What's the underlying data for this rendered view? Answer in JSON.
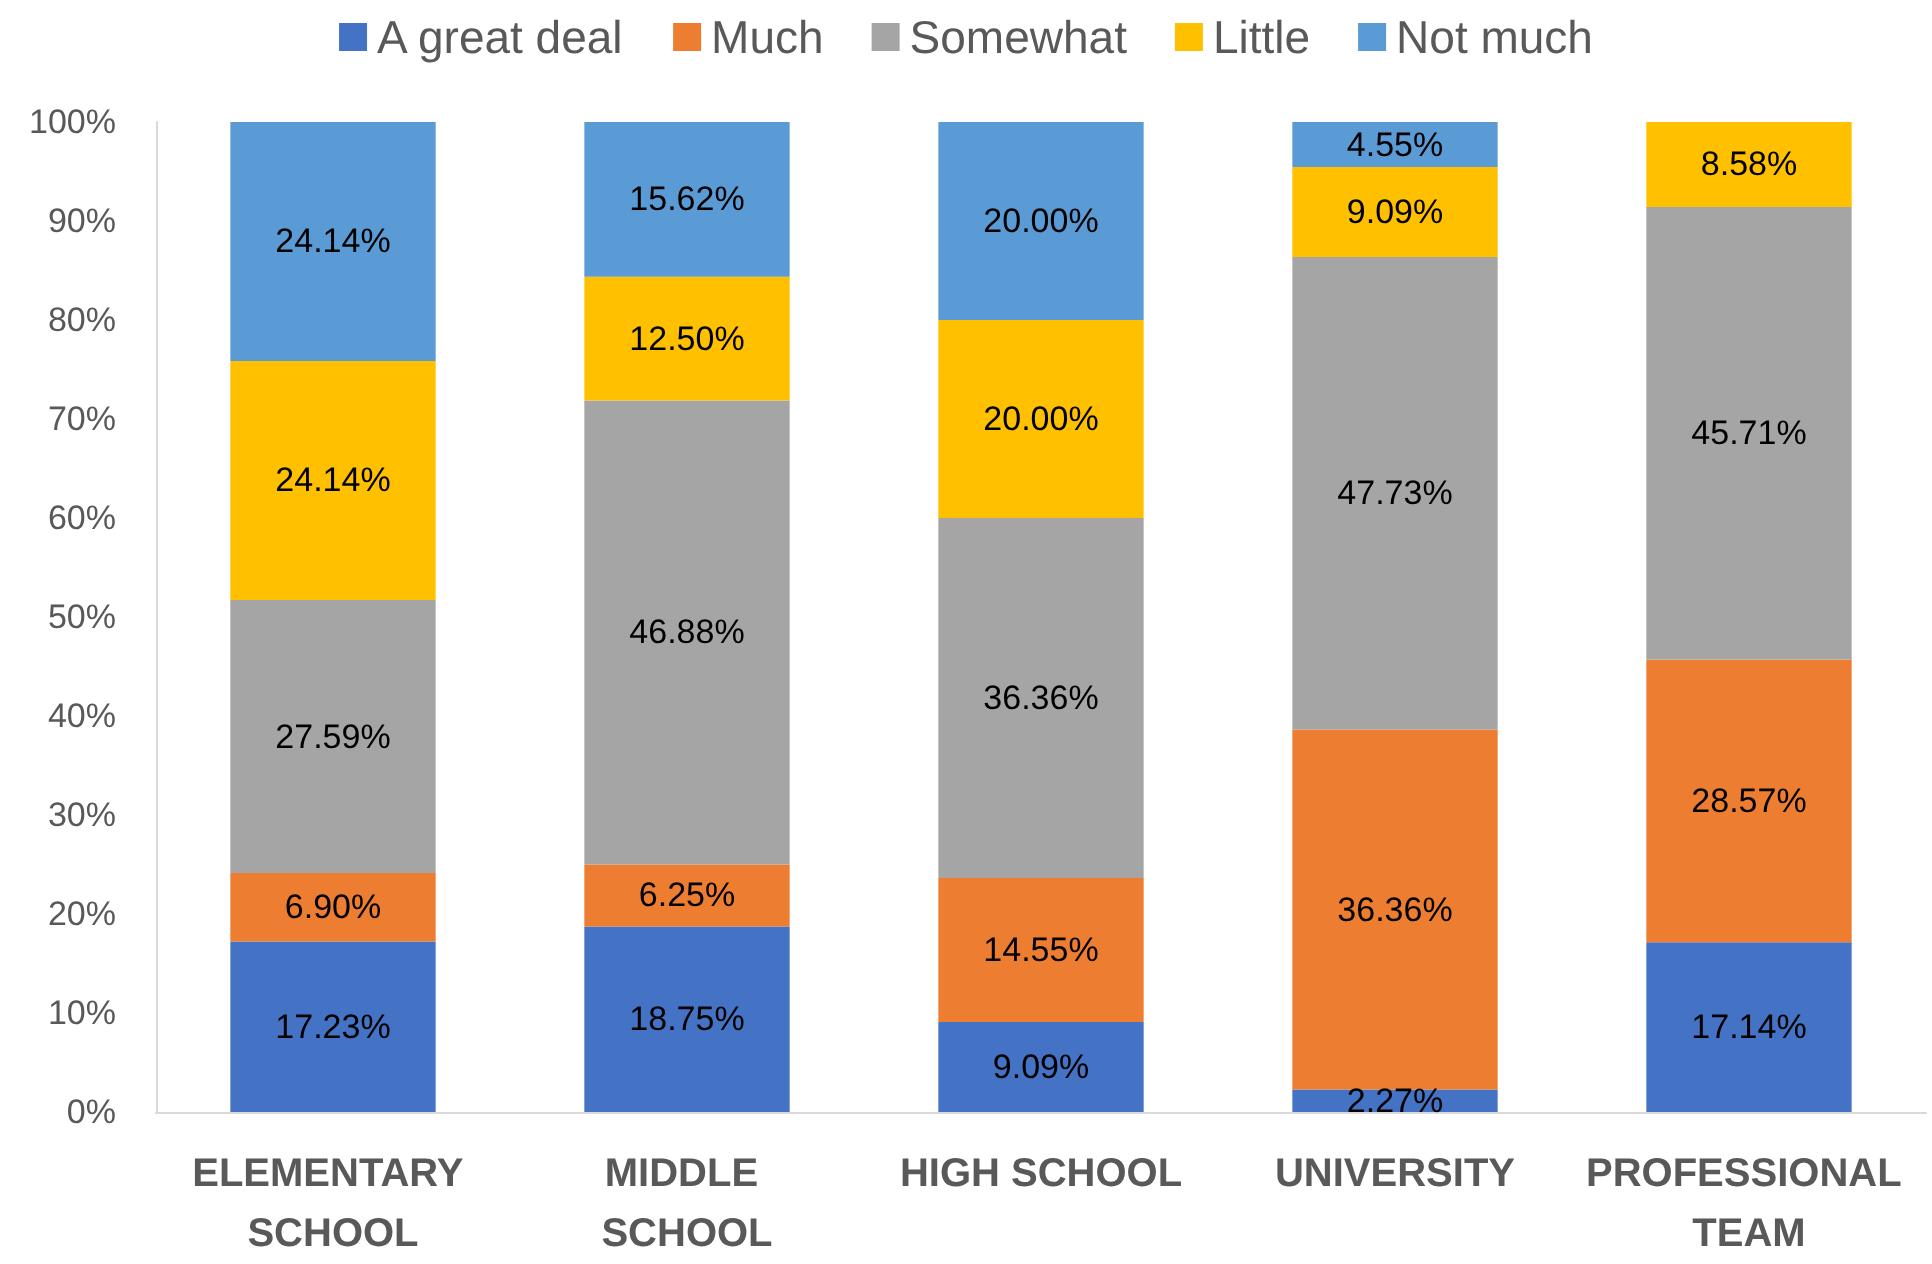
{
  "chart_data": {
    "type": "bar",
    "stacked": true,
    "legend": "top",
    "grid": false,
    "categories": [
      "ELEMENTARY SCHOOL",
      "MIDDLE SCHOOL",
      "HIGH SCHOOL",
      "UNIVERSITY",
      "PROFESSIONAL TEAM"
    ],
    "ylim": [
      0,
      100
    ],
    "yticks": [
      {
        "value": 0,
        "label": "0%"
      },
      {
        "value": 10,
        "label": "10%"
      },
      {
        "value": 20,
        "label": "20%"
      },
      {
        "value": 30,
        "label": "30%"
      },
      {
        "value": 40,
        "label": "40%"
      },
      {
        "value": 50,
        "label": "50%"
      },
      {
        "value": 60,
        "label": "60%"
      },
      {
        "value": 70,
        "label": "70%"
      },
      {
        "value": 80,
        "label": "80%"
      },
      {
        "value": 90,
        "label": "90%"
      },
      {
        "value": 100,
        "label": "100%"
      }
    ],
    "series": [
      {
        "name": "A great deal",
        "color": "#4472c4",
        "values": [
          17.23,
          18.75,
          9.09,
          2.27,
          17.14
        ],
        "value_labels": [
          "17.23%",
          "18.75%",
          "9.09%",
          "2.27%",
          "17.14%"
        ]
      },
      {
        "name": "Much",
        "color": "#ed7d31",
        "values": [
          6.9,
          6.25,
          14.55,
          36.36,
          28.57
        ],
        "value_labels": [
          "6.90%",
          "6.25%",
          "14.55%",
          "36.36%",
          "28.57%"
        ]
      },
      {
        "name": "Somewhat",
        "color": "#a5a5a5",
        "values": [
          27.59,
          46.88,
          36.36,
          47.73,
          45.71
        ],
        "value_labels": [
          "27.59%",
          "46.88%",
          "36.36%",
          "47.73%",
          "45.71%"
        ]
      },
      {
        "name": "Little",
        "color": "#ffc000",
        "values": [
          24.14,
          12.5,
          20.0,
          9.09,
          8.58
        ],
        "value_labels": [
          "24.14%",
          "12.50%",
          "20.00%",
          "9.09%",
          "8.58%"
        ]
      },
      {
        "name": "Not much",
        "color": "#5b9bd5",
        "values": [
          24.14,
          15.62,
          20.0,
          4.55,
          null
        ],
        "value_labels": [
          "24.14%",
          "15.62%",
          "20.00%",
          "4.55%",
          null
        ]
      }
    ]
  }
}
